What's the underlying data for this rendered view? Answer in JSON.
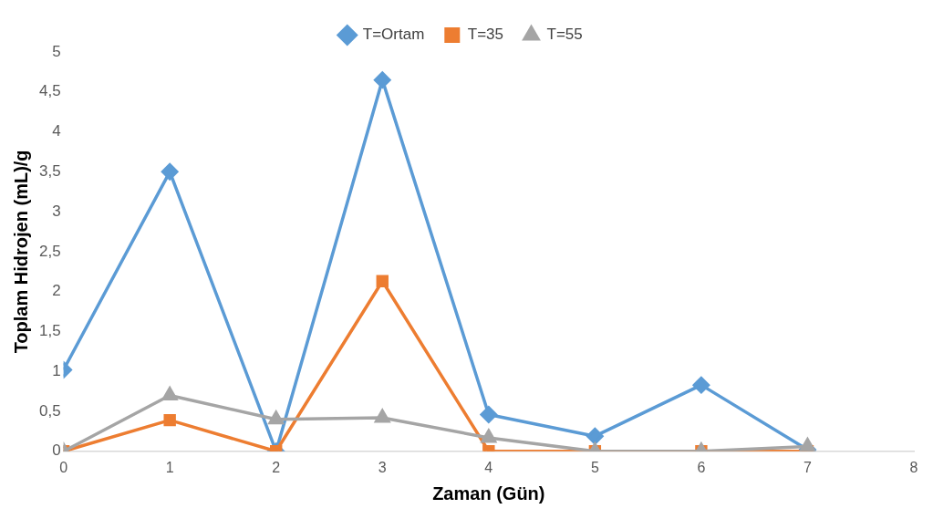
{
  "chart_data": {
    "type": "line",
    "xlabel": "Zaman (Gün)",
    "ylabel": "Toplam Hidrojen (mL)/g",
    "x": [
      0,
      1,
      2,
      3,
      4,
      5,
      6,
      7
    ],
    "xlim": [
      0,
      8
    ],
    "xticks": [
      0,
      1,
      2,
      3,
      4,
      5,
      6,
      7,
      8
    ],
    "ylim": [
      0,
      5
    ],
    "yticks": [
      0,
      {
        "value": 0.5,
        "label": "0,5"
      },
      1,
      {
        "value": 1.5,
        "label": "1,5"
      },
      2,
      {
        "value": 2.5,
        "label": "2,5"
      },
      3,
      {
        "value": 3.5,
        "label": "3,5"
      },
      4,
      {
        "value": 4.5,
        "label": "4,5"
      },
      5
    ],
    "legend": "top",
    "line_style": "solid",
    "series": [
      {
        "name": "T=Ortam",
        "color": "#5b9bd5",
        "marker": "diamond",
        "values": [
          1.02,
          3.5,
          0,
          4.65,
          0.46,
          0.19,
          0.83,
          0.02
        ]
      },
      {
        "name": "T=35",
        "color": "#ed7d31",
        "marker": "square",
        "values": [
          0,
          0.39,
          0,
          2.13,
          0,
          0,
          0,
          0
        ]
      },
      {
        "name": "T=55",
        "color": "#a5a5a5",
        "marker": "triangle",
        "values": [
          0,
          0.7,
          0.4,
          0.42,
          0.17,
          0,
          0,
          0.06
        ]
      }
    ]
  }
}
